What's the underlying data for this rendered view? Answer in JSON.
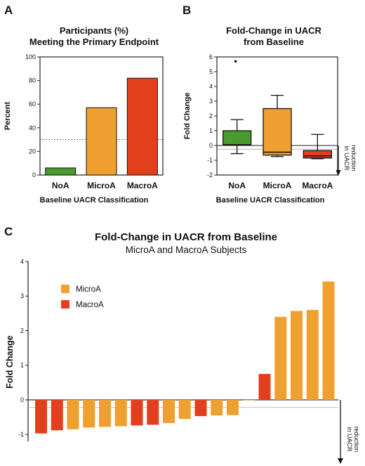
{
  "panels": {
    "a": {
      "letter": "A"
    },
    "b": {
      "letter": "B"
    },
    "c": {
      "letter": "C"
    }
  },
  "colors": {
    "noa": "#4a9a2e",
    "microa": "#f0a030",
    "macroa": "#e2401c"
  },
  "chart_data": [
    {
      "id": "A",
      "type": "bar",
      "title_line1": "Participants (%)",
      "title_line2": "Meeting the Primary Endpoint",
      "xlabel": "Baseline UACR Classification",
      "ylabel": "Percent",
      "categories": [
        "NoA",
        "MicroA",
        "MacroA"
      ],
      "values": [
        6,
        57,
        82
      ],
      "ylim": [
        0,
        100
      ],
      "yticks": [
        "0",
        "20",
        "40",
        "60",
        "80",
        "100"
      ],
      "reference_line": 30
    },
    {
      "id": "B",
      "type": "box",
      "title_line1": "Fold-Change in UACR",
      "title_line2": "from Baseline",
      "xlabel": "Baseline UACR Classification",
      "ylabel": "Fold Change",
      "categories": [
        "NoA",
        "MicroA",
        "MacroA"
      ],
      "boxes": [
        {
          "min": -0.55,
          "q1": 0.05,
          "median": 0.05,
          "q3": 1.0,
          "max": 1.75,
          "outliers": [
            5.7
          ]
        },
        {
          "min": -0.75,
          "q1": -0.65,
          "median": -0.45,
          "q3": 2.5,
          "max": 3.4,
          "outliers": []
        },
        {
          "min": -0.9,
          "q1": -0.85,
          "median": -0.7,
          "q3": -0.35,
          "max": 0.75,
          "outliers": []
        }
      ],
      "ylim": [
        -2,
        6
      ],
      "yticks": [
        "-2",
        "-1",
        "0",
        "1",
        "2",
        "3",
        "4",
        "5",
        "6"
      ],
      "reference_line": -0.25,
      "annotation": [
        "reduction",
        "in UACR"
      ]
    },
    {
      "id": "C",
      "type": "bar",
      "title": "Fold-Change in UACR from Baseline",
      "subtitle": "MicroA and MacroA Subjects",
      "ylabel": "Fold Change",
      "legend": [
        {
          "label": "MicroA",
          "color": "#f0a030"
        },
        {
          "label": "MacroA",
          "color": "#e2401c"
        }
      ],
      "values": [
        -0.97,
        -0.88,
        -0.85,
        -0.8,
        -0.78,
        -0.76,
        -0.74,
        -0.72,
        -0.67,
        -0.55,
        -0.47,
        -0.45,
        -0.44,
        0.0,
        0.75,
        2.4,
        2.57,
        2.6,
        3.42
      ],
      "groups": [
        "MacroA",
        "MacroA",
        "MicroA",
        "MicroA",
        "MicroA",
        "MicroA",
        "MacroA",
        "MacroA",
        "MicroA",
        "MicroA",
        "MacroA",
        "MicroA",
        "MicroA",
        "MicroA",
        "MacroA",
        "MicroA",
        "MicroA",
        "MicroA",
        "MicroA"
      ],
      "ylim": [
        -1.2,
        4
      ],
      "yticks": [
        "-1",
        "0",
        "1",
        "2",
        "3",
        "4"
      ],
      "reference_line": -0.22,
      "annotation": [
        "reduction",
        "in UACR"
      ]
    }
  ]
}
